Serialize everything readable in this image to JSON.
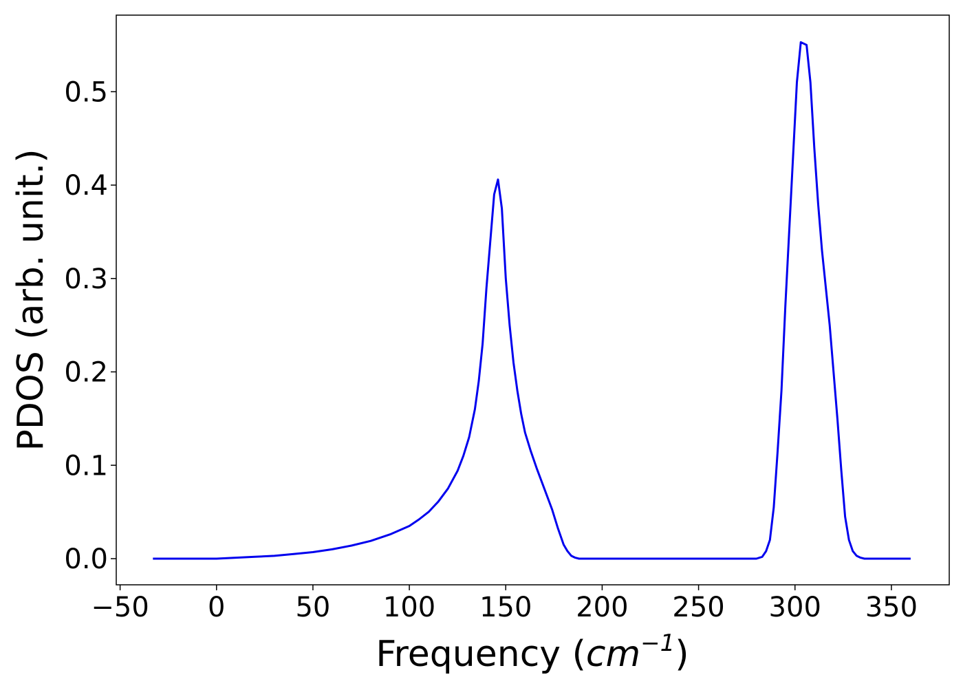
{
  "chart_data": {
    "type": "line",
    "title": "",
    "xlabel": "Frequency",
    "xlabel_unit_base": "cm",
    "xlabel_unit_exp": "−1",
    "ylabel": "PDOS (arb. unit.)",
    "xlim": [
      -52,
      380
    ],
    "ylim": [
      -0.028,
      0.582
    ],
    "x_ticks": [
      -50,
      0,
      50,
      100,
      150,
      200,
      250,
      300,
      350
    ],
    "x_tick_labels": [
      "−50",
      "0",
      "50",
      "100",
      "150",
      "200",
      "250",
      "300",
      "350"
    ],
    "y_ticks": [
      0.0,
      0.1,
      0.2,
      0.3,
      0.4,
      0.5
    ],
    "y_tick_labels": [
      "0.0",
      "0.1",
      "0.2",
      "0.3",
      "0.4",
      "0.5"
    ],
    "grid": false,
    "series": [
      {
        "color": "#0000ee",
        "x": [
          -33,
          -20,
          -10,
          0,
          10,
          20,
          30,
          40,
          50,
          60,
          70,
          80,
          90,
          100,
          105,
          110,
          115,
          120,
          125,
          128,
          131,
          134,
          136,
          138,
          140,
          142,
          144,
          146,
          148,
          150,
          152,
          154,
          156,
          158,
          160,
          163,
          166,
          170,
          174,
          177,
          180,
          182,
          184,
          186,
          188,
          190,
          200,
          220,
          240,
          260,
          280,
          283,
          285,
          287,
          289,
          291,
          293,
          295,
          297,
          299,
          301,
          303,
          304,
          306,
          308,
          310,
          312,
          314,
          316,
          318,
          320,
          322,
          324,
          326,
          328,
          330,
          332,
          334,
          336,
          340,
          350,
          360
        ],
        "y": [
          0.0,
          0.0,
          0.0,
          0.0,
          0.001,
          0.002,
          0.003,
          0.005,
          0.007,
          0.01,
          0.014,
          0.019,
          0.026,
          0.035,
          0.042,
          0.05,
          0.061,
          0.075,
          0.094,
          0.11,
          0.13,
          0.16,
          0.19,
          0.23,
          0.29,
          0.34,
          0.39,
          0.406,
          0.375,
          0.3,
          0.25,
          0.21,
          0.18,
          0.155,
          0.135,
          0.115,
          0.097,
          0.075,
          0.053,
          0.033,
          0.015,
          0.008,
          0.003,
          0.001,
          0.0,
          0.0,
          0.0,
          0.0,
          0.0,
          0.0,
          0.0,
          0.002,
          0.008,
          0.02,
          0.055,
          0.115,
          0.18,
          0.27,
          0.35,
          0.43,
          0.51,
          0.553,
          0.552,
          0.55,
          0.51,
          0.44,
          0.38,
          0.33,
          0.29,
          0.25,
          0.2,
          0.15,
          0.095,
          0.045,
          0.02,
          0.008,
          0.003,
          0.001,
          0.0,
          0.0,
          0.0,
          0.0
        ]
      }
    ]
  }
}
